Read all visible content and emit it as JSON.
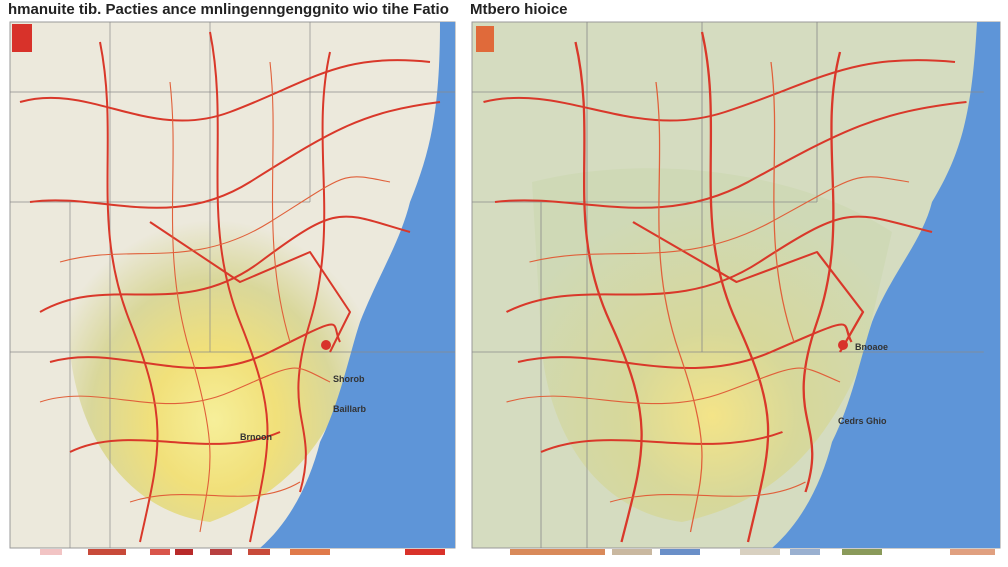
{
  "left_panel": {
    "title": "hmanuite tib. Pacties ance mnlingenngenggnito wio tihe Fatio",
    "labels": [
      "Shorob",
      "Baillarb",
      "Brnoon"
    ]
  },
  "right_panel": {
    "title": "Mtbero hioice",
    "labels": [
      "Cedrs Ghio",
      "Bnoaoe"
    ]
  }
}
